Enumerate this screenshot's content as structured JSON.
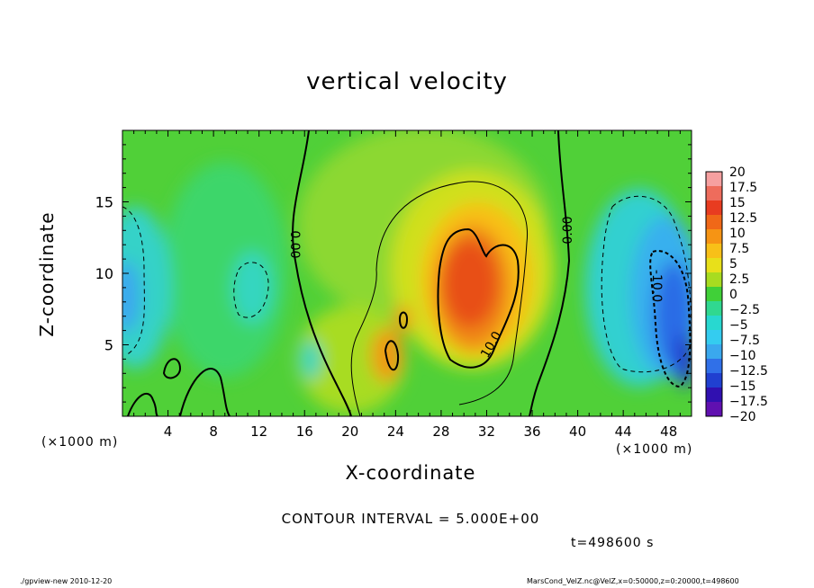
{
  "chart_data": {
    "type": "heatmap",
    "title": "vertical velocity",
    "xlabel": "X-coordinate",
    "ylabel": "Z-coordinate",
    "x_unit": "(×1000 m)",
    "x_unit_right": "(×1000 m)",
    "xlim": [
      0,
      50
    ],
    "ylim": [
      0,
      20
    ],
    "x_ticks": [
      4,
      8,
      12,
      16,
      20,
      24,
      28,
      32,
      36,
      40,
      44,
      48
    ],
    "y_ticks": [
      5,
      10,
      15
    ],
    "colorbar_levels": [
      "20",
      "17.5",
      "15",
      "12.5",
      "10",
      "7.5",
      "5",
      "2.5",
      "0",
      "−2.5",
      "−5",
      "−7.5",
      "−10",
      "−12.5",
      "−15",
      "−17.5",
      "−20"
    ],
    "colorbar_colors": [
      "#f6a0a0",
      "#ee6c5c",
      "#e83c20",
      "#f06818",
      "#f69414",
      "#f8c018",
      "#e8e01a",
      "#a8dc20",
      "#40d038",
      "#30d890",
      "#28d8d0",
      "#34ccf0",
      "#3aa8ee",
      "#3070e8",
      "#2040d0",
      "#3010b0",
      "#6010b0"
    ],
    "contour_labels": [
      "0.00",
      "0.00",
      "10.0",
      "-10.0"
    ],
    "contour_interval": "CONTOUR INTERVAL = 5.000E+00",
    "time": "t=498600 s",
    "footer_left": "./gpview-new   2010-12-20",
    "footer_right": "MarsCond_VelZ.nc@VelZ,x=0:50000,z=0:20000,t=498600"
  }
}
